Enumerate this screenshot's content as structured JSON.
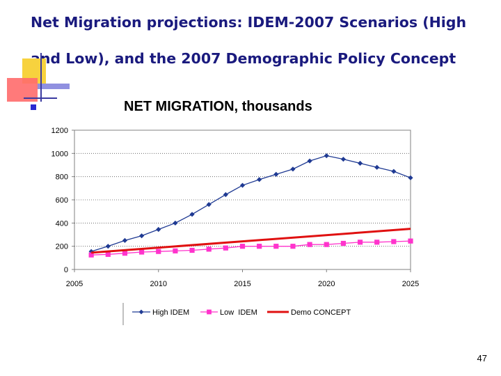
{
  "slide": {
    "title": "Net Migration projections: IDEM-2007 Scenarios (High and Low), and the 2007 Demographic Policy Concept",
    "page_number": "47"
  },
  "colors": {
    "title": "#1a1a7e",
    "high": "#1f3a93",
    "low": "#ff33cc",
    "concept": "#e01010",
    "deco_yellow": "#f7d23e",
    "deco_red": "#ff6b6b",
    "deco_blue": "#2a2ad0"
  },
  "chart_data": {
    "type": "line",
    "title": "NET MIGRATION, thousands",
    "xlabel": "",
    "ylabel": "",
    "xlim": [
      2005,
      2025
    ],
    "ylim": [
      0,
      1200
    ],
    "xticks": [
      2005,
      2010,
      2015,
      2020,
      2025
    ],
    "yticks": [
      0,
      200,
      400,
      600,
      800,
      1000,
      1200
    ],
    "grid": "horizontal-dotted",
    "legend_position": "bottom",
    "series": [
      {
        "name": "High IDEM",
        "marker": "diamond",
        "x": [
          2006,
          2007,
          2008,
          2009,
          2010,
          2011,
          2012,
          2013,
          2014,
          2015,
          2016,
          2017,
          2018,
          2019,
          2020,
          2021,
          2022,
          2023,
          2024,
          2025
        ],
        "values": [
          155,
          200,
          250,
          290,
          345,
          400,
          475,
          560,
          645,
          725,
          775,
          820,
          865,
          935,
          980,
          950,
          915,
          880,
          845,
          790
        ]
      },
      {
        "name": "Low  IDEM",
        "marker": "square",
        "x": [
          2006,
          2007,
          2008,
          2009,
          2010,
          2011,
          2012,
          2013,
          2014,
          2015,
          2016,
          2017,
          2018,
          2019,
          2020,
          2021,
          2022,
          2023,
          2024,
          2025
        ],
        "values": [
          125,
          130,
          140,
          150,
          155,
          160,
          165,
          175,
          185,
          200,
          200,
          200,
          200,
          215,
          215,
          225,
          235,
          235,
          240,
          245
        ]
      },
      {
        "name": "Demo CONCEPT",
        "marker": "none",
        "x": [
          2006,
          2025
        ],
        "values": [
          145,
          350
        ]
      }
    ]
  }
}
